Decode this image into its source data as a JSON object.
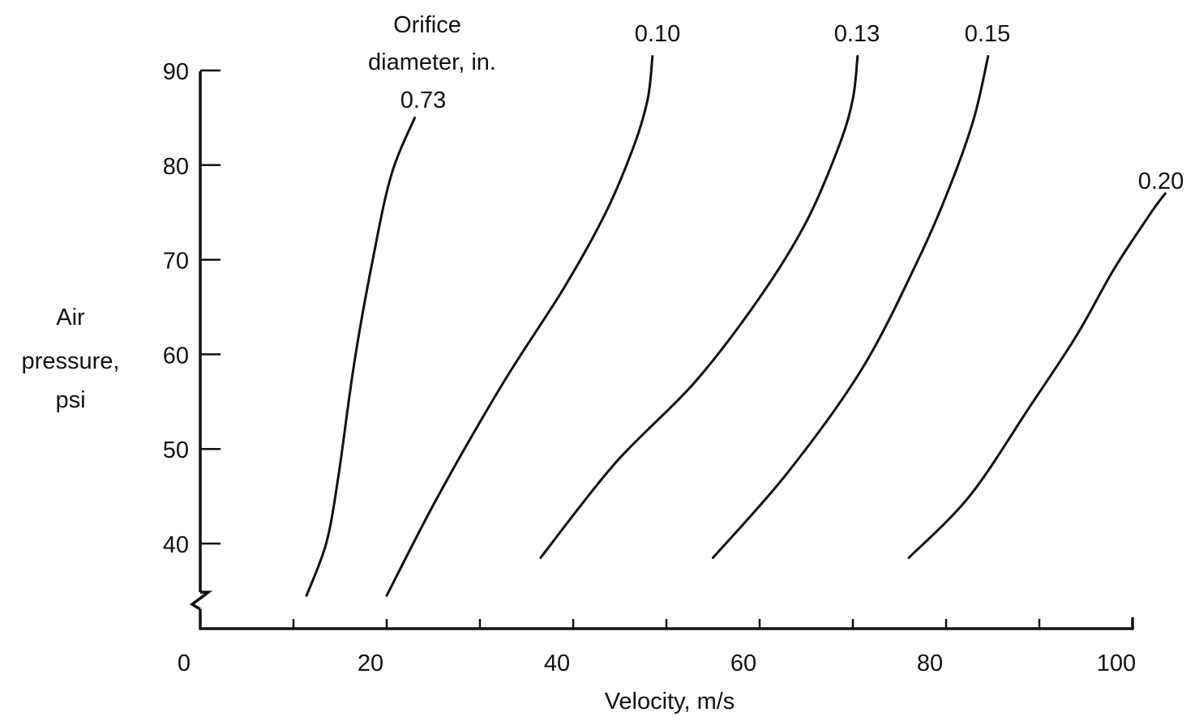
{
  "chart_data": {
    "type": "line",
    "xlabel": "Velocity,  m/s",
    "ylabel_lines": [
      "Air",
      "pressure,",
      "psi"
    ],
    "legend_title_lines": [
      "Orifice",
      "diameter, in."
    ],
    "xlim": [
      0,
      100
    ],
    "ylim": [
      34,
      90
    ],
    "y_axis_broken": true,
    "grid": false,
    "x_ticks": [
      0,
      10,
      20,
      30,
      40,
      50,
      60,
      70,
      80,
      90,
      100
    ],
    "x_tick_labels": [
      "0",
      "",
      "20",
      "",
      "40",
      "",
      "60",
      "",
      "80",
      "",
      "100"
    ],
    "y_ticks": [
      40,
      50,
      60,
      70,
      80,
      90
    ],
    "y_tick_labels": [
      "40",
      "50",
      "60",
      "70",
      "80",
      "90"
    ],
    "series": [
      {
        "name": "0.73",
        "points": [
          [
            11.4,
            34.5
          ],
          [
            13.5,
            40
          ],
          [
            14.8,
            47
          ],
          [
            16.5,
            59
          ],
          [
            18.5,
            70
          ],
          [
            20.5,
            79
          ],
          [
            23,
            85
          ]
        ]
      },
      {
        "name": "0.10",
        "points": [
          [
            20,
            34.5
          ],
          [
            25.5,
            45
          ],
          [
            32.5,
            57
          ],
          [
            39,
            67
          ],
          [
            43.5,
            75
          ],
          [
            46.5,
            82
          ],
          [
            48,
            87
          ],
          [
            48.5,
            91.5
          ]
        ]
      },
      {
        "name": "0.13",
        "points": [
          [
            36.5,
            38.5
          ],
          [
            44.5,
            48.5
          ],
          [
            53,
            57
          ],
          [
            60,
            66
          ],
          [
            65,
            74
          ],
          [
            68.5,
            82
          ],
          [
            70,
            87
          ],
          [
            70.5,
            91.5
          ]
        ]
      },
      {
        "name": "0.15",
        "points": [
          [
            55,
            38.5
          ],
          [
            63,
            47.5
          ],
          [
            71,
            58.5
          ],
          [
            77,
            70
          ],
          [
            80.5,
            78
          ],
          [
            83,
            85
          ],
          [
            84.5,
            91.5
          ]
        ]
      },
      {
        "name": "0.20",
        "points": [
          [
            76,
            38.5
          ],
          [
            82.5,
            45
          ],
          [
            89,
            54.5
          ],
          [
            94,
            62
          ],
          [
            98,
            69
          ],
          [
            102,
            75
          ],
          [
            103.5,
            77
          ]
        ]
      }
    ]
  }
}
